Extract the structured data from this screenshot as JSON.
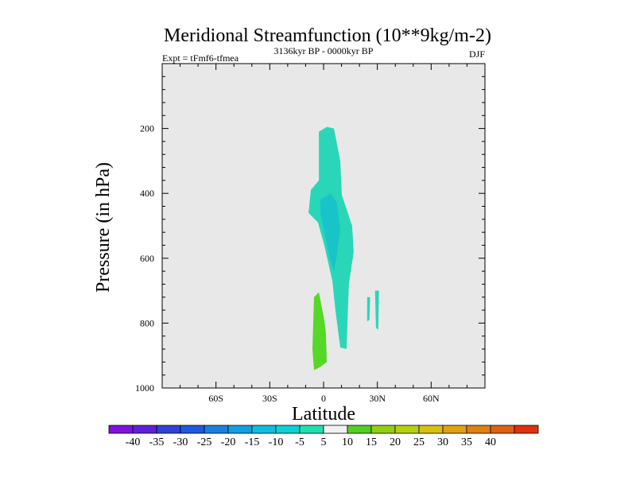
{
  "chart_data": {
    "type": "filled-contour",
    "title": "Meridional Streamfunction (10**9kg/m-2)",
    "subtitle_left": "Expt = tFmf6-tfmea",
    "subtitle_center": "3136kyr BP - 0000kyr BP",
    "subtitle_right": "DJF",
    "xlabel": "Latitude",
    "ylabel": "Pressure (in hPa)",
    "xlim": [
      -90,
      90
    ],
    "ylim": [
      1000,
      0
    ],
    "x_ticks": [
      {
        "value": -60,
        "label": "60S"
      },
      {
        "value": -30,
        "label": "30S"
      },
      {
        "value": 0,
        "label": "0"
      },
      {
        "value": 30,
        "label": "30N"
      },
      {
        "value": 60,
        "label": "60N"
      }
    ],
    "y_ticks": [
      {
        "value": 200,
        "label": "200"
      },
      {
        "value": 400,
        "label": "400"
      },
      {
        "value": 600,
        "label": "600"
      },
      {
        "value": 800,
        "label": "800"
      },
      {
        "value": 1000,
        "label": "1000"
      }
    ],
    "background_color": "#e8e8e8",
    "contour_regions": [
      {
        "name": "main-negative-cell",
        "level": "-10 to -5",
        "color": "#2ad6b8",
        "points": [
          [
            -2.6,
            210
          ],
          [
            1.8,
            195
          ],
          [
            5.8,
            200
          ],
          [
            9.3,
            300
          ],
          [
            10.2,
            405
          ],
          [
            15.9,
            500
          ],
          [
            16.8,
            580
          ],
          [
            14.1,
            680
          ],
          [
            12.8,
            880
          ],
          [
            9.3,
            875
          ],
          [
            6.6,
            760
          ],
          [
            4.9,
            670
          ],
          [
            0.4,
            560
          ],
          [
            -3.1,
            490
          ],
          [
            -8.4,
            460
          ],
          [
            -7.1,
            390
          ],
          [
            -2.6,
            360
          ],
          [
            -2.6,
            210
          ]
        ]
      },
      {
        "name": "inner-negative-core",
        "level": "-15 to -10",
        "color": "#19c4c8",
        "points": [
          [
            -1.8,
            420
          ],
          [
            4.0,
            400
          ],
          [
            7.5,
            430
          ],
          [
            9.3,
            510
          ],
          [
            7.5,
            590
          ],
          [
            5.8,
            640
          ],
          [
            3.5,
            600
          ],
          [
            0.4,
            520
          ],
          [
            -1.8,
            460
          ],
          [
            -1.8,
            420
          ]
        ]
      },
      {
        "name": "small-negative-patch-a",
        "level": "-10 to -5",
        "color": "#2ad6b8",
        "points": [
          [
            24.3,
            720
          ],
          [
            26.0,
            720
          ],
          [
            25.6,
            790
          ],
          [
            24.3,
            795
          ],
          [
            24.3,
            720
          ]
        ]
      },
      {
        "name": "small-negative-patch-b",
        "level": "-10 to -5",
        "color": "#2ad6b8",
        "points": [
          [
            28.7,
            700
          ],
          [
            30.9,
            700
          ],
          [
            30.5,
            820
          ],
          [
            29.2,
            815
          ],
          [
            28.7,
            700
          ]
        ]
      },
      {
        "name": "positive-cell",
        "level": "5 to 10",
        "color": "#55d828",
        "points": [
          [
            -5.3,
            720
          ],
          [
            -2.6,
            705
          ],
          [
            0.4,
            790
          ],
          [
            1.3,
            830
          ],
          [
            1.8,
            920
          ],
          [
            -1.8,
            935
          ],
          [
            -5.3,
            945
          ],
          [
            -6.2,
            880
          ],
          [
            -5.3,
            720
          ]
        ]
      }
    ],
    "colorbar": {
      "labels": [
        "-40",
        "-35",
        "-30",
        "-25",
        "-20",
        "-15",
        "-10",
        "-5",
        "5",
        "10",
        "15",
        "20",
        "25",
        "30",
        "35",
        "40"
      ],
      "colors": [
        "#8010e0",
        "#6020d8",
        "#3040d8",
        "#2058e0",
        "#1880e0",
        "#10a0e0",
        "#10bce0",
        "#10d0d0",
        "#20e0b0",
        "#f0f0f0",
        "#50d020",
        "#90d010",
        "#b8d010",
        "#d8c010",
        "#e0a010",
        "#e08010",
        "#e06010",
        "#e03010"
      ]
    }
  }
}
